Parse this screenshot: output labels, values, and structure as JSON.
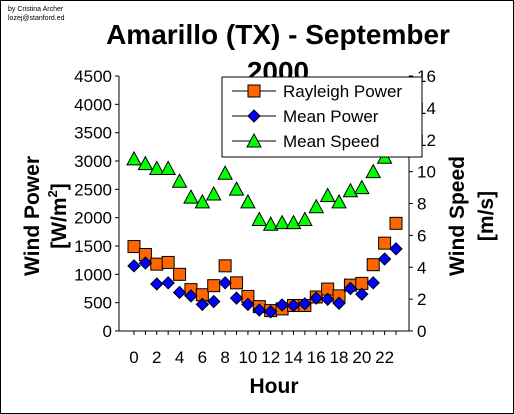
{
  "credit": {
    "line1": "by Cristina Archer",
    "line2": "lozej@stanford.ed"
  },
  "chart_data": {
    "type": "line",
    "title": "Amarillo (TX) - September 2000",
    "title_line1": "Amarillo (TX) - September",
    "title_line2": "2000",
    "xlabel": "Hour",
    "ylabel_left": "Wind Power [W/m²]",
    "ylabel_left_main": "Wind Power",
    "ylabel_left_unit_pre": "[W/m",
    "ylabel_left_unit_sup": "2",
    "ylabel_left_unit_post": "]",
    "ylabel_right": "Wind Speed [m/s]",
    "ylabel_right_main": "Wind Speed",
    "ylabel_right_unit": "[m/s]",
    "x": [
      0,
      1,
      2,
      3,
      4,
      5,
      6,
      7,
      8,
      9,
      10,
      11,
      12,
      13,
      14,
      15,
      16,
      17,
      18,
      19,
      20,
      21,
      22,
      23
    ],
    "xlim": [
      0,
      23
    ],
    "x_ticks": [
      "0",
      "2",
      "4",
      "6",
      "8",
      "10",
      "12",
      "14",
      "16",
      "18",
      "20",
      "22"
    ],
    "ylim_left": [
      0,
      4500
    ],
    "y_ticks_left": [
      "0",
      "500",
      "1000",
      "1500",
      "2000",
      "2500",
      "3000",
      "3500",
      "4000",
      "4500"
    ],
    "ylim_right": [
      0,
      16
    ],
    "y_ticks_right": [
      "0",
      "2",
      "4",
      "6",
      "8",
      "10",
      "12",
      "14",
      "16"
    ],
    "grid": false,
    "legend_placement": "top-right",
    "series": [
      {
        "name": "Rayleigh Power",
        "axis": "left",
        "marker": "square",
        "color": "#FF6600",
        "values": [
          1490,
          1350,
          1180,
          1210,
          1000,
          730,
          640,
          800,
          1150,
          850,
          610,
          430,
          360,
          390,
          450,
          450,
          600,
          740,
          620,
          810,
          840,
          1170,
          1550,
          1900
        ]
      },
      {
        "name": "Mean Power",
        "axis": "left",
        "marker": "diamond",
        "color": "#0000FF",
        "values": [
          1150,
          1200,
          830,
          850,
          680,
          620,
          470,
          520,
          850,
          580,
          470,
          370,
          340,
          460,
          450,
          480,
          580,
          560,
          490,
          750,
          650,
          850,
          1270,
          1450
        ]
      },
      {
        "name": "Mean Speed",
        "axis": "right",
        "marker": "triangle",
        "color": "#00FF00",
        "values": [
          10.8,
          10.5,
          10.2,
          10.2,
          9.4,
          8.4,
          8.1,
          8.6,
          9.9,
          8.9,
          8.1,
          7.0,
          6.7,
          6.8,
          6.8,
          7.0,
          7.8,
          8.5,
          8.1,
          8.8,
          9.0,
          10.0,
          10.9,
          11.7
        ]
      }
    ]
  }
}
